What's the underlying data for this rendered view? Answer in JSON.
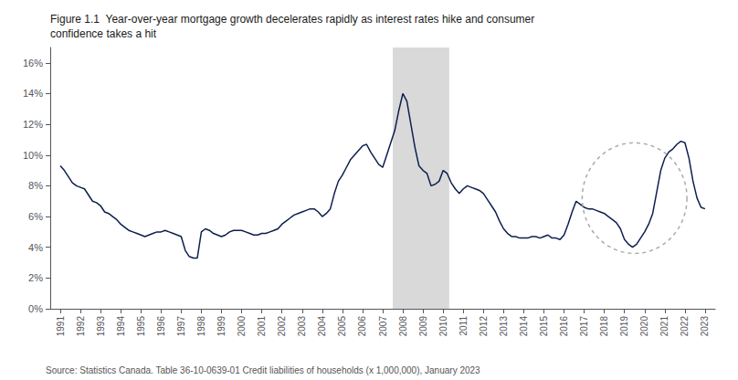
{
  "chart_data": {
    "type": "line",
    "title": "Figure 1.1  Year-over-year mortgage growth decelerates rapidly as interest rates hike and consumer\nconfidence takes a hit",
    "annotations": [
      "Source: Statistics Canada. Table 36-10-0639-01 Credit liabilities of households (x 1,000,000), January 2023"
    ],
    "color": "#0d1f4e",
    "grid": false,
    "shaded_region": {
      "x": [
        2007.5,
        2010.3
      ],
      "color": "#d9d9d9"
    },
    "ellipse": {
      "center": [
        2019.5,
        0.072
      ],
      "width": 5.2,
      "height": 0.072,
      "color": "#aaaaaa",
      "line_style": "dashed"
    },
    "xlim": [
      1990.5,
      2023.5
    ],
    "xticks": [
      1991,
      1992,
      1993,
      1994,
      1995,
      1996,
      1997,
      1998,
      1999,
      2000,
      2001,
      2002,
      2003,
      2004,
      2005,
      2006,
      2007,
      2008,
      2009,
      2010,
      2011,
      2012,
      2013,
      2014,
      2015,
      2016,
      2017,
      2018,
      2019,
      2020,
      2021,
      2022,
      2023
    ],
    "ylim": [
      0.0,
      0.17
    ],
    "yticks": [
      {
        "value": 0.0,
        "label": "0%"
      },
      {
        "value": 0.02,
        "label": "2%"
      },
      {
        "value": 0.04,
        "label": "4%"
      },
      {
        "value": 0.06,
        "label": "6%"
      },
      {
        "value": 0.08,
        "label": "8%"
      },
      {
        "value": 0.1,
        "label": "10%"
      },
      {
        "value": 0.12,
        "label": "12%"
      },
      {
        "value": 0.14,
        "label": "14%"
      },
      {
        "value": 0.16,
        "label": "16%"
      }
    ],
    "x": [
      1991.0,
      1991.2,
      1991.4,
      1991.6,
      1991.8,
      1992.0,
      1992.2,
      1992.4,
      1992.6,
      1992.8,
      1993.0,
      1993.2,
      1993.4,
      1993.6,
      1993.8,
      1994.0,
      1994.2,
      1994.4,
      1994.6,
      1994.8,
      1995.0,
      1995.2,
      1995.4,
      1995.6,
      1995.8,
      1996.0,
      1996.2,
      1996.4,
      1996.6,
      1996.8,
      1997.0,
      1997.2,
      1997.4,
      1997.6,
      1997.8,
      1998.0,
      1998.2,
      1998.4,
      1998.6,
      1998.8,
      1999.0,
      1999.2,
      1999.4,
      1999.6,
      1999.8,
      2000.0,
      2000.2,
      2000.4,
      2000.6,
      2000.8,
      2001.0,
      2001.2,
      2001.4,
      2001.6,
      2001.8,
      2002.0,
      2002.2,
      2002.4,
      2002.6,
      2002.8,
      2003.0,
      2003.2,
      2003.4,
      2003.6,
      2003.8,
      2004.0,
      2004.2,
      2004.4,
      2004.6,
      2004.8,
      2005.0,
      2005.2,
      2005.4,
      2005.6,
      2005.8,
      2006.0,
      2006.2,
      2006.4,
      2006.6,
      2006.8,
      2007.0,
      2007.2,
      2007.4,
      2007.6,
      2007.8,
      2008.0,
      2008.2,
      2008.4,
      2008.6,
      2008.8,
      2009.0,
      2009.2,
      2009.4,
      2009.6,
      2009.8,
      2010.0,
      2010.2,
      2010.4,
      2010.6,
      2010.8,
      2011.0,
      2011.2,
      2011.4,
      2011.6,
      2011.8,
      2012.0,
      2012.2,
      2012.4,
      2012.6,
      2012.8,
      2013.0,
      2013.2,
      2013.4,
      2013.6,
      2013.8,
      2014.0,
      2014.2,
      2014.4,
      2014.6,
      2014.8,
      2015.0,
      2015.2,
      2015.4,
      2015.6,
      2015.8,
      2016.0,
      2016.2,
      2016.4,
      2016.6,
      2016.8,
      2017.0,
      2017.2,
      2017.4,
      2017.6,
      2017.8,
      2018.0,
      2018.2,
      2018.4,
      2018.6,
      2018.8,
      2019.0,
      2019.2,
      2019.4,
      2019.6,
      2019.8,
      2020.0,
      2020.2,
      2020.4,
      2020.6,
      2020.8,
      2021.0,
      2021.2,
      2021.4,
      2021.6,
      2021.8,
      2022.0,
      2022.2,
      2022.4,
      2022.6,
      2022.8,
      2023.0
    ],
    "values": [
      0.093,
      0.09,
      0.086,
      0.082,
      0.08,
      0.079,
      0.078,
      0.074,
      0.07,
      0.069,
      0.067,
      0.063,
      0.062,
      0.06,
      0.058,
      0.055,
      0.053,
      0.051,
      0.05,
      0.049,
      0.048,
      0.047,
      0.048,
      0.049,
      0.05,
      0.05,
      0.051,
      0.05,
      0.049,
      0.048,
      0.047,
      0.038,
      0.034,
      0.033,
      0.033,
      0.05,
      0.052,
      0.051,
      0.049,
      0.048,
      0.047,
      0.048,
      0.05,
      0.051,
      0.051,
      0.051,
      0.05,
      0.049,
      0.048,
      0.048,
      0.049,
      0.049,
      0.05,
      0.051,
      0.052,
      0.055,
      0.057,
      0.059,
      0.061,
      0.062,
      0.063,
      0.064,
      0.065,
      0.065,
      0.063,
      0.06,
      0.062,
      0.065,
      0.075,
      0.083,
      0.087,
      0.092,
      0.097,
      0.1,
      0.103,
      0.106,
      0.107,
      0.102,
      0.098,
      0.094,
      0.092,
      0.1,
      0.108,
      0.116,
      0.129,
      0.14,
      0.135,
      0.12,
      0.105,
      0.093,
      0.09,
      0.088,
      0.08,
      0.081,
      0.083,
      0.09,
      0.088,
      0.082,
      0.078,
      0.075,
      0.078,
      0.08,
      0.079,
      0.078,
      0.077,
      0.075,
      0.071,
      0.067,
      0.063,
      0.057,
      0.052,
      0.049,
      0.047,
      0.047,
      0.046,
      0.046,
      0.046,
      0.047,
      0.047,
      0.046,
      0.047,
      0.048,
      0.046,
      0.046,
      0.045,
      0.048,
      0.055,
      0.063,
      0.07,
      0.068,
      0.066,
      0.065,
      0.065,
      0.064,
      0.063,
      0.062,
      0.06,
      0.058,
      0.056,
      0.052,
      0.045,
      0.042,
      0.04,
      0.042,
      0.046,
      0.05,
      0.055,
      0.062,
      0.076,
      0.09,
      0.098,
      0.102,
      0.104,
      0.107,
      0.109,
      0.108,
      0.098,
      0.083,
      0.072,
      0.066,
      0.065
    ]
  }
}
